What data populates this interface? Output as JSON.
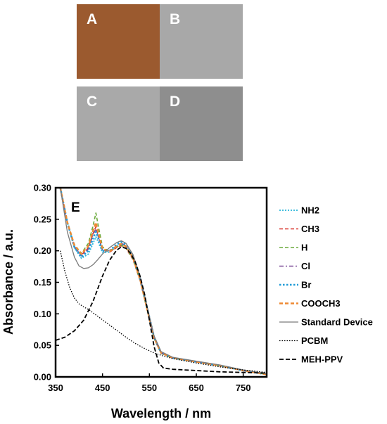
{
  "panels": [
    {
      "id": "a",
      "label": "A",
      "color": "#9b5a2f"
    },
    {
      "id": "b",
      "label": "B",
      "color": "#a8a8a8"
    },
    {
      "id": "c",
      "label": "C",
      "color": "#a9a9a9"
    },
    {
      "id": "d",
      "label": "D",
      "color": "#8e8e8e"
    }
  ],
  "chart_data": {
    "type": "line",
    "panel_label": "E",
    "title": "",
    "xlabel": "Wavelength / nm",
    "ylabel": "Absorbance  / a.u.",
    "xlim": [
      350,
      800
    ],
    "ylim": [
      0,
      0.3
    ],
    "xticks": [
      350,
      450,
      550,
      650,
      750
    ],
    "yticks": [
      0.0,
      0.05,
      0.1,
      0.15,
      0.2,
      0.25,
      0.3
    ],
    "grid": false,
    "legend_position": "right",
    "series": [
      {
        "name": "NH2",
        "color": "#29b6d9",
        "dash": "dot",
        "x": [
          360,
          375,
          390,
          405,
          420,
          430,
          436,
          442,
          450,
          465,
          480,
          490,
          500,
          515,
          530,
          545,
          560,
          575,
          600,
          650,
          700,
          750,
          800
        ],
        "y": [
          0.3,
          0.245,
          0.205,
          0.188,
          0.195,
          0.212,
          0.222,
          0.212,
          0.197,
          0.198,
          0.207,
          0.211,
          0.207,
          0.188,
          0.155,
          0.108,
          0.062,
          0.038,
          0.03,
          0.024,
          0.018,
          0.01,
          0.004
        ]
      },
      {
        "name": "CH3",
        "color": "#d9342b",
        "dash": "dash",
        "x": [
          360,
          375,
          390,
          405,
          420,
          430,
          436,
          442,
          450,
          465,
          480,
          490,
          500,
          515,
          530,
          545,
          560,
          575,
          600,
          650,
          700,
          750,
          800
        ],
        "y": [
          0.3,
          0.244,
          0.208,
          0.193,
          0.205,
          0.228,
          0.238,
          0.222,
          0.202,
          0.198,
          0.205,
          0.208,
          0.204,
          0.186,
          0.153,
          0.107,
          0.061,
          0.037,
          0.03,
          0.024,
          0.018,
          0.01,
          0.004
        ]
      },
      {
        "name": "H",
        "color": "#6aaa3c",
        "dash": "dash",
        "x": [
          360,
          375,
          390,
          405,
          420,
          430,
          436,
          442,
          450,
          465,
          480,
          490,
          500,
          515,
          530,
          545,
          560,
          575,
          600,
          650,
          700,
          750,
          800
        ],
        "y": [
          0.3,
          0.246,
          0.21,
          0.196,
          0.212,
          0.24,
          0.26,
          0.236,
          0.206,
          0.199,
          0.206,
          0.209,
          0.205,
          0.187,
          0.154,
          0.107,
          0.061,
          0.037,
          0.03,
          0.024,
          0.018,
          0.01,
          0.004
        ]
      },
      {
        "name": "Cl",
        "color": "#7d4b97",
        "dash": "dashdot",
        "x": [
          360,
          375,
          390,
          405,
          420,
          430,
          436,
          442,
          450,
          465,
          480,
          490,
          500,
          515,
          530,
          545,
          560,
          575,
          600,
          650,
          700,
          750,
          800
        ],
        "y": [
          0.3,
          0.244,
          0.207,
          0.192,
          0.203,
          0.226,
          0.235,
          0.22,
          0.201,
          0.2,
          0.208,
          0.212,
          0.208,
          0.19,
          0.156,
          0.109,
          0.062,
          0.038,
          0.03,
          0.024,
          0.018,
          0.01,
          0.004
        ]
      },
      {
        "name": "Br",
        "color": "#1f9bd7",
        "dash": "dotbold",
        "x": [
          360,
          375,
          390,
          405,
          420,
          430,
          436,
          442,
          450,
          465,
          480,
          490,
          500,
          515,
          530,
          545,
          560,
          575,
          600,
          650,
          700,
          750,
          800
        ],
        "y": [
          0.3,
          0.245,
          0.206,
          0.19,
          0.2,
          0.22,
          0.23,
          0.218,
          0.2,
          0.2,
          0.21,
          0.214,
          0.21,
          0.191,
          0.157,
          0.11,
          0.063,
          0.038,
          0.03,
          0.024,
          0.018,
          0.01,
          0.004
        ]
      },
      {
        "name": "COOCH3",
        "color": "#ee8a33",
        "dash": "dashbold",
        "x": [
          360,
          375,
          390,
          405,
          420,
          430,
          436,
          442,
          450,
          465,
          480,
          490,
          500,
          515,
          530,
          545,
          560,
          575,
          600,
          650,
          700,
          750,
          800
        ],
        "y": [
          0.3,
          0.245,
          0.209,
          0.195,
          0.208,
          0.232,
          0.245,
          0.226,
          0.203,
          0.199,
          0.207,
          0.211,
          0.207,
          0.189,
          0.155,
          0.108,
          0.062,
          0.038,
          0.03,
          0.024,
          0.018,
          0.01,
          0.004
        ]
      },
      {
        "name": "Standard Device",
        "color": "#7a7a7a",
        "dash": "solid",
        "x": [
          360,
          375,
          390,
          400,
          410,
          420,
          430,
          440,
          450,
          465,
          480,
          490,
          500,
          515,
          530,
          545,
          560,
          575,
          600,
          650,
          700,
          750,
          800
        ],
        "y": [
          0.3,
          0.23,
          0.19,
          0.176,
          0.172,
          0.173,
          0.178,
          0.186,
          0.195,
          0.205,
          0.213,
          0.216,
          0.212,
          0.194,
          0.16,
          0.112,
          0.065,
          0.04,
          0.031,
          0.025,
          0.019,
          0.011,
          0.005
        ]
      },
      {
        "name": "PCBM",
        "color": "#000000",
        "dash": "dotblack",
        "x": [
          360,
          370,
          380,
          390,
          400,
          410,
          420,
          440,
          460,
          480,
          500,
          520,
          540,
          560,
          580,
          600,
          650,
          700,
          750,
          800
        ],
        "y": [
          0.2,
          0.167,
          0.142,
          0.125,
          0.116,
          0.111,
          0.107,
          0.096,
          0.085,
          0.074,
          0.063,
          0.053,
          0.045,
          0.038,
          0.033,
          0.029,
          0.022,
          0.016,
          0.011,
          0.007
        ]
      },
      {
        "name": "MEH-PPV",
        "color": "#000000",
        "dash": "dashblack",
        "x": [
          350,
          370,
          390,
          410,
          430,
          450,
          465,
          480,
          490,
          500,
          510,
          520,
          530,
          540,
          550,
          560,
          570,
          580,
          600,
          650,
          700,
          750,
          800
        ],
        "y": [
          0.058,
          0.063,
          0.073,
          0.09,
          0.12,
          0.16,
          0.185,
          0.201,
          0.206,
          0.204,
          0.196,
          0.182,
          0.16,
          0.13,
          0.09,
          0.048,
          0.022,
          0.014,
          0.012,
          0.01,
          0.008,
          0.007,
          0.006
        ]
      }
    ]
  }
}
